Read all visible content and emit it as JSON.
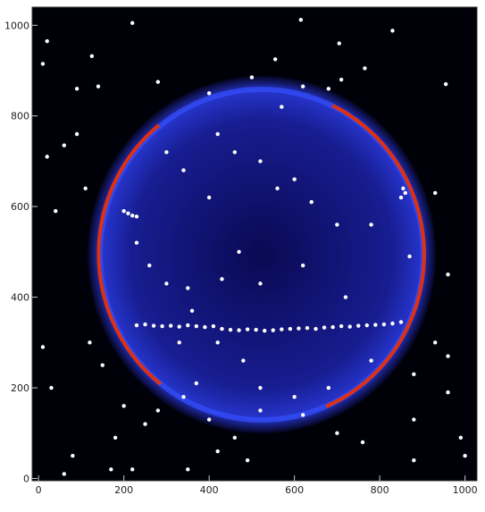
{
  "chart_data": {
    "type": "scatter",
    "xlim": [
      -15,
      1028
    ],
    "ylim": [
      -5,
      1040
    ],
    "xticks": [
      0,
      200,
      400,
      600,
      800,
      1000
    ],
    "yticks": [
      0,
      200,
      400,
      600,
      800,
      1000
    ],
    "series": [
      {
        "color": "#ffffff",
        "x": [
          20,
          10,
          125,
          220,
          555,
          615,
          705,
          830,
          765,
          955,
          90,
          140,
          280,
          400,
          500,
          570,
          620,
          680,
          710,
          20,
          60,
          40,
          110,
          90,
          300,
          340,
          400,
          420,
          460,
          520,
          560,
          600,
          640,
          700,
          780,
          850,
          930,
          960,
          470,
          430,
          520,
          620,
          720,
          350,
          230,
          260,
          300,
          360,
          420,
          480,
          520,
          600,
          680,
          780,
          880,
          930,
          960,
          120,
          150,
          200,
          280,
          340,
          400,
          460,
          520,
          620,
          760,
          880,
          960,
          990,
          1000,
          80,
          180,
          220,
          350,
          420,
          490,
          170,
          60,
          10,
          30,
          250,
          700,
          880,
          330,
          370,
          200,
          210,
          220,
          230,
          855,
          860,
          870
        ],
        "y": [
          965,
          915,
          932,
          1005,
          925,
          1012,
          960,
          988,
          905,
          870,
          860,
          865,
          875,
          850,
          885,
          820,
          865,
          860,
          880,
          710,
          735,
          590,
          640,
          760,
          720,
          680,
          620,
          760,
          720,
          700,
          640,
          660,
          610,
          560,
          560,
          620,
          630,
          450,
          500,
          440,
          430,
          470,
          400,
          420,
          520,
          470,
          430,
          370,
          300,
          260,
          200,
          180,
          200,
          260,
          230,
          300,
          270,
          300,
          250,
          160,
          150,
          180,
          130,
          90,
          150,
          140,
          80,
          130,
          190,
          90,
          50,
          50,
          90,
          20,
          20,
          60,
          40,
          20,
          10,
          290,
          200,
          120,
          100,
          40,
          300,
          210,
          590,
          585,
          580,
          578,
          640,
          630,
          490
        ]
      },
      {
        "color": "#ffffff",
        "x": [
          230,
          250,
          270,
          290,
          310,
          330,
          350,
          370,
          390,
          410,
          430,
          450,
          470,
          490,
          510,
          530,
          550,
          570,
          590,
          610,
          630,
          650,
          670,
          690,
          710,
          730,
          750,
          770,
          790,
          810,
          830,
          850
        ],
        "y": [
          338,
          340,
          337,
          336,
          337,
          335,
          338,
          336,
          334,
          336,
          330,
          328,
          327,
          329,
          328,
          326,
          327,
          329,
          330,
          331,
          332,
          330,
          333,
          334,
          336,
          335,
          337,
          338,
          339,
          340,
          342,
          345
        ]
      }
    ]
  }
}
